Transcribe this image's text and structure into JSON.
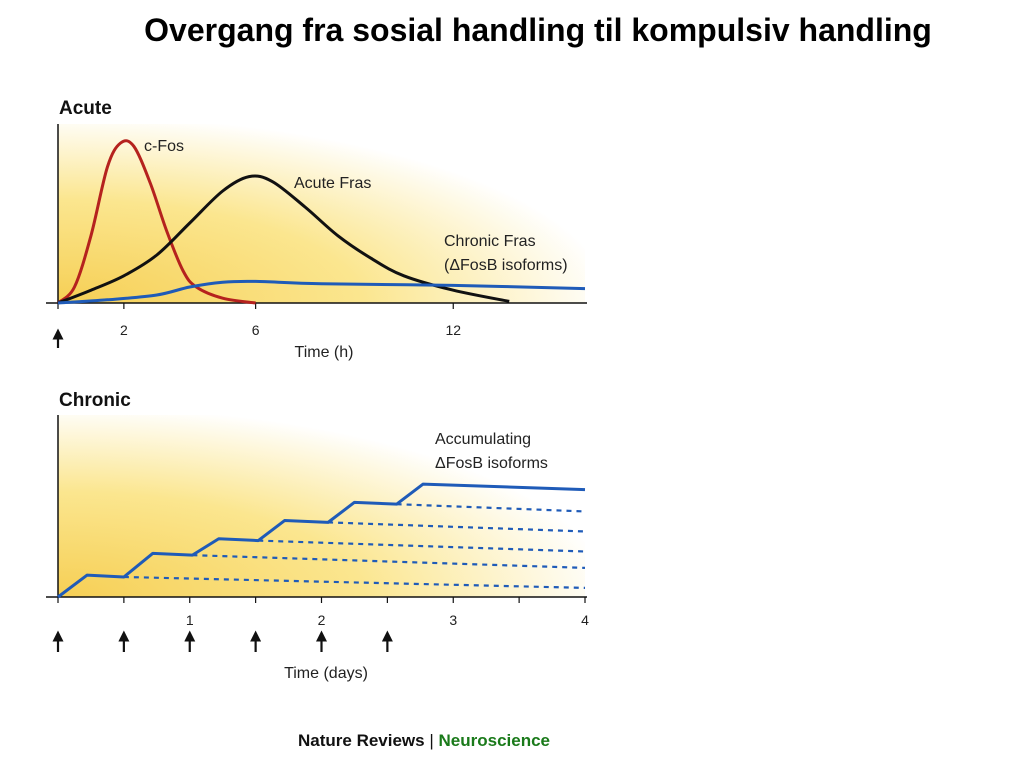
{
  "title": "Overgang fra sosial handling til kompulsiv handling",
  "credit": {
    "journal": "Nature Reviews",
    "separator": " | ",
    "section": "Neuroscience"
  },
  "colors": {
    "red": "#b5221e",
    "black": "#111111",
    "blue": "#1f5bb8",
    "accent": "#1a7a1a",
    "bg_gradient_from": "#f6d25a",
    "bg_gradient_to": "#ffffff"
  },
  "chart_data": [
    {
      "type": "line",
      "panel": "Acute",
      "xlabel": "Time (h)",
      "xticks": [
        0,
        2,
        6,
        12
      ],
      "xtick_labels": [
        "",
        "2",
        "6",
        "12"
      ],
      "xlim": [
        0,
        16
      ],
      "ylim": [
        0,
        1
      ],
      "stimulus_markers": [
        0
      ],
      "series": [
        {
          "name": "c-Fos",
          "color": "#b5221e",
          "points": [
            [
              0,
              0
            ],
            [
              0.5,
              0.1
            ],
            [
              1,
              0.42
            ],
            [
              1.5,
              0.85
            ],
            [
              1.9,
              1.0
            ],
            [
              2.3,
              0.98
            ],
            [
              2.8,
              0.75
            ],
            [
              3.3,
              0.45
            ],
            [
              3.8,
              0.2
            ],
            [
              4.2,
              0.1
            ],
            [
              5,
              0.03
            ],
            [
              6,
              0
            ]
          ]
        },
        {
          "name": "Acute Fras",
          "color": "#111111",
          "points": [
            [
              0,
              0
            ],
            [
              1,
              0.08
            ],
            [
              2,
              0.17
            ],
            [
              3,
              0.3
            ],
            [
              4,
              0.5
            ],
            [
              5,
              0.7
            ],
            [
              5.8,
              0.79
            ],
            [
              6.5,
              0.76
            ],
            [
              7.5,
              0.6
            ],
            [
              8.5,
              0.42
            ],
            [
              9.5,
              0.28
            ],
            [
              10.5,
              0.17
            ],
            [
              12,
              0.08
            ],
            [
              13.7,
              0.01
            ]
          ]
        },
        {
          "name": "Chronic Fras\n(ΔFosB isoforms)",
          "color": "#1f5bb8",
          "points": [
            [
              0,
              0
            ],
            [
              1.5,
              0.02
            ],
            [
              3,
              0.05
            ],
            [
              4,
              0.1
            ],
            [
              5,
              0.13
            ],
            [
              6,
              0.135
            ],
            [
              8,
              0.12
            ],
            [
              12,
              0.11
            ],
            [
              16,
              0.09
            ]
          ]
        }
      ],
      "annotations": [
        "c-Fos",
        "Acute Fras",
        "Chronic Fras",
        "(ΔFosB isoforms)"
      ]
    },
    {
      "type": "line",
      "panel": "Chronic",
      "xlabel": "Time (days)",
      "xticks": [
        0,
        0.5,
        1,
        1.5,
        2,
        2.5,
        3,
        3.5,
        4
      ],
      "xtick_labels": [
        "",
        "",
        "1",
        "",
        "2",
        "",
        "3",
        "",
        "4"
      ],
      "xlim": [
        0,
        4
      ],
      "ylim": [
        0,
        1
      ],
      "stimulus_markers": [
        0,
        0.5,
        1,
        1.5,
        2,
        2.5
      ],
      "series": [
        {
          "name": "Accumulating\nΔFosB isoforms",
          "color": "#1f5bb8",
          "points": [
            [
              0,
              0
            ],
            [
              0.22,
              0.12
            ],
            [
              0.5,
              0.11
            ],
            [
              0.72,
              0.24
            ],
            [
              1.02,
              0.23
            ],
            [
              1.22,
              0.32
            ],
            [
              1.52,
              0.31
            ],
            [
              1.72,
              0.42
            ],
            [
              2.05,
              0.41
            ],
            [
              2.25,
              0.52
            ],
            [
              2.57,
              0.51
            ],
            [
              2.77,
              0.62
            ],
            [
              4,
              0.59
            ]
          ]
        }
      ],
      "dashed_decay_lines": [
        {
          "from": [
            0.5,
            0.11
          ],
          "to": [
            4,
            0.05
          ]
        },
        {
          "from": [
            1.02,
            0.23
          ],
          "to": [
            4,
            0.16
          ]
        },
        {
          "from": [
            1.52,
            0.31
          ],
          "to": [
            4,
            0.25
          ]
        },
        {
          "from": [
            2.05,
            0.41
          ],
          "to": [
            4,
            0.36
          ]
        },
        {
          "from": [
            2.57,
            0.51
          ],
          "to": [
            4,
            0.47
          ]
        }
      ],
      "annotations": [
        "Accumulating",
        "ΔFosB isoforms"
      ]
    }
  ]
}
